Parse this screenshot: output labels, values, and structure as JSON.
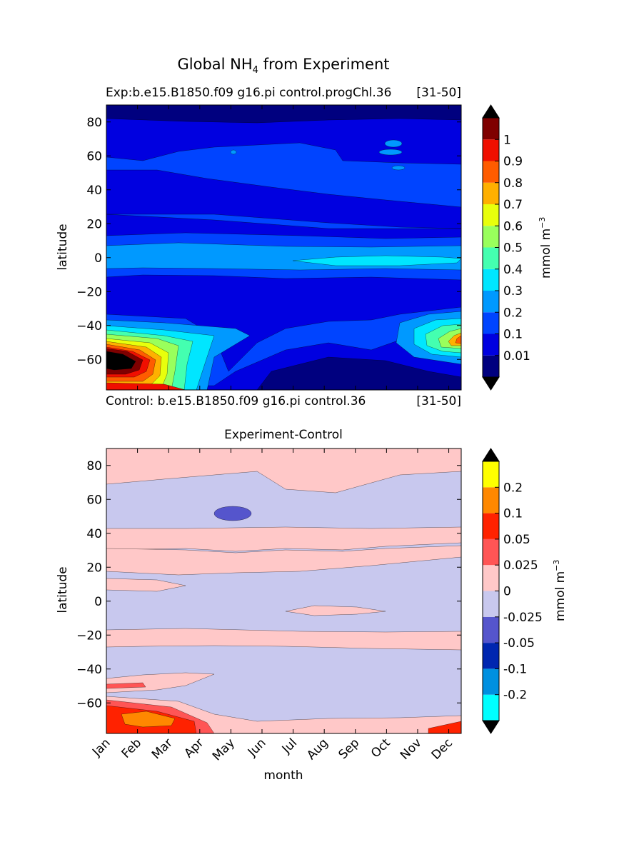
{
  "figure": {
    "suptitle_main": "Global NH",
    "suptitle_sub": "4",
    "suptitle_rest": " from Experiment"
  },
  "top": {
    "title_left": "Exp:b.e15.B1850.f09 g16.pi control.progChl.36",
    "title_right": "[31-50]",
    "bottom_left": "Control: b.e15.B1850.f09 g16.pi control.36",
    "bottom_right": "[31-50]"
  },
  "bottom": {
    "title": "Experiment-Control"
  },
  "chart_data": [
    {
      "type": "heatmap",
      "panel": "experiment",
      "ylabel": "latitude",
      "ylim": [
        -78,
        90
      ],
      "yticks": [
        80,
        60,
        40,
        20,
        0,
        -20,
        -40,
        -60
      ],
      "ytick_labels": [
        "80",
        "60",
        "40",
        "20",
        "0",
        "−20",
        "−40",
        "−60"
      ],
      "x_categories": [
        "Jan",
        "Feb",
        "Mar",
        "Apr",
        "May",
        "Jun",
        "Jul",
        "Aug",
        "Sep",
        "Oct",
        "Nov",
        "Dec"
      ],
      "colorbar": {
        "label_main": "mmol m",
        "label_sup": "−3",
        "levels": [
          0.001,
          0.01,
          0.1,
          0.2,
          0.3,
          0.4,
          0.5,
          0.6,
          0.7,
          0.8,
          0.9,
          1,
          1.1
        ],
        "tick_labels": [
          "0.01",
          "0.1",
          "0.2",
          "0.3",
          "0.4",
          "0.5",
          "0.6",
          "0.7",
          "0.8",
          "0.9",
          "1"
        ],
        "colors": [
          "#00007f",
          "#0000e0",
          "#0044ff",
          "#0099ff",
          "#00e6ff",
          "#44ffb0",
          "#99ff5c",
          "#e8ff0c",
          "#ffb000",
          "#ff5c00",
          "#f00f00",
          "#7f0000"
        ],
        "under_color": "#000000",
        "over_color": "#000000",
        "extend": "both"
      },
      "values_note": "Mostly 0.01-0.1 mmol m-3 everywhere; 0.1-0.2 band near the equator with 0.2-0.3 from Jul to Oct; Southern Ocean maxima up to >1 in Jan-Feb near 60-65S and 0.4-0.9 in Nov-Dec near 50-60S; <0.01 near 85N and 65-75S in Jun-Oct."
    },
    {
      "type": "heatmap",
      "panel": "difference",
      "ylabel": "latitude",
      "xlabel": "month",
      "ylim": [
        -78,
        90
      ],
      "yticks": [
        80,
        60,
        40,
        20,
        0,
        -20,
        -40,
        -60
      ],
      "ytick_labels": [
        "80",
        "60",
        "40",
        "20",
        "0",
        "−20",
        "−40",
        "−60"
      ],
      "x_categories": [
        "Jan",
        "Feb",
        "Mar",
        "Apr",
        "May",
        "Jun",
        "Jul",
        "Aug",
        "Sep",
        "Oct",
        "Nov",
        "Dec"
      ],
      "colorbar": {
        "label_main": "mmol m",
        "label_sup": "−3",
        "levels": [
          -0.3,
          -0.2,
          -0.1,
          -0.05,
          -0.025,
          0,
          0.025,
          0.05,
          0.1,
          0.2,
          0.3
        ],
        "tick_labels": [
          "-0.2",
          "-0.1",
          "-0.05",
          "-0.025",
          "0",
          "0.025",
          "0.05",
          "0.1",
          "0.2"
        ],
        "colors": [
          "#00ffff",
          "#0090e0",
          "#0026b0",
          "#5555cc",
          "#c8c8ee",
          "#ffc8c8",
          "#ff5555",
          "#ff2200",
          "#ff8800",
          "#ffff00"
        ],
        "under_color": "#000000",
        "over_color": "#000000",
        "extend": "both"
      },
      "values_note": "Alternating zonal bands between -0.025..0 and 0..0.025; one -0.05..-0.025 patch near 50N in May; positive 0.05-0.2 in Jan-Mar south of 62S."
    }
  ]
}
